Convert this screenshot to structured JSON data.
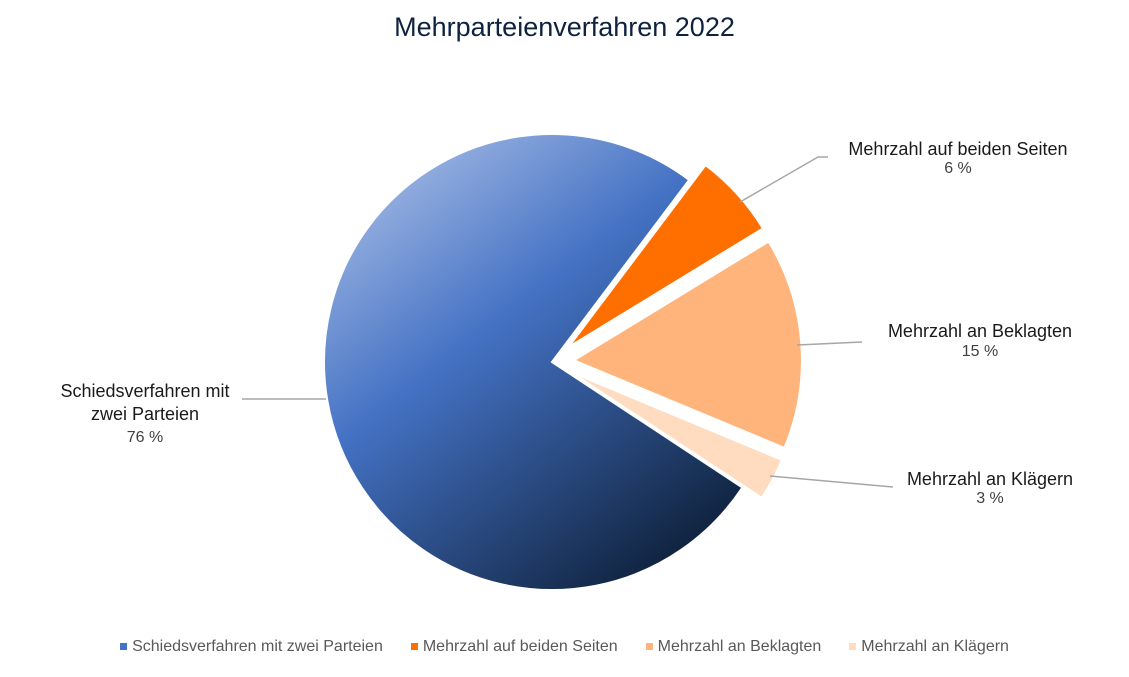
{
  "chart_data": {
    "type": "pie",
    "title": "Mehrparteienverfahren 2022",
    "categories": [
      "Schiedsverfahren mit zwei Parteien",
      "Mehrzahl auf beiden Seiten",
      "Mehrzahl an Beklagten",
      "Mehrzahl an Klägern"
    ],
    "values": [
      76,
      6,
      15,
      3
    ],
    "value_labels": [
      "76 %",
      "6 %",
      "15 %",
      "3 %"
    ],
    "colors": [
      "#4472c4",
      "#ff6f00",
      "#ffb47c",
      "#ffdcc0"
    ]
  }
}
